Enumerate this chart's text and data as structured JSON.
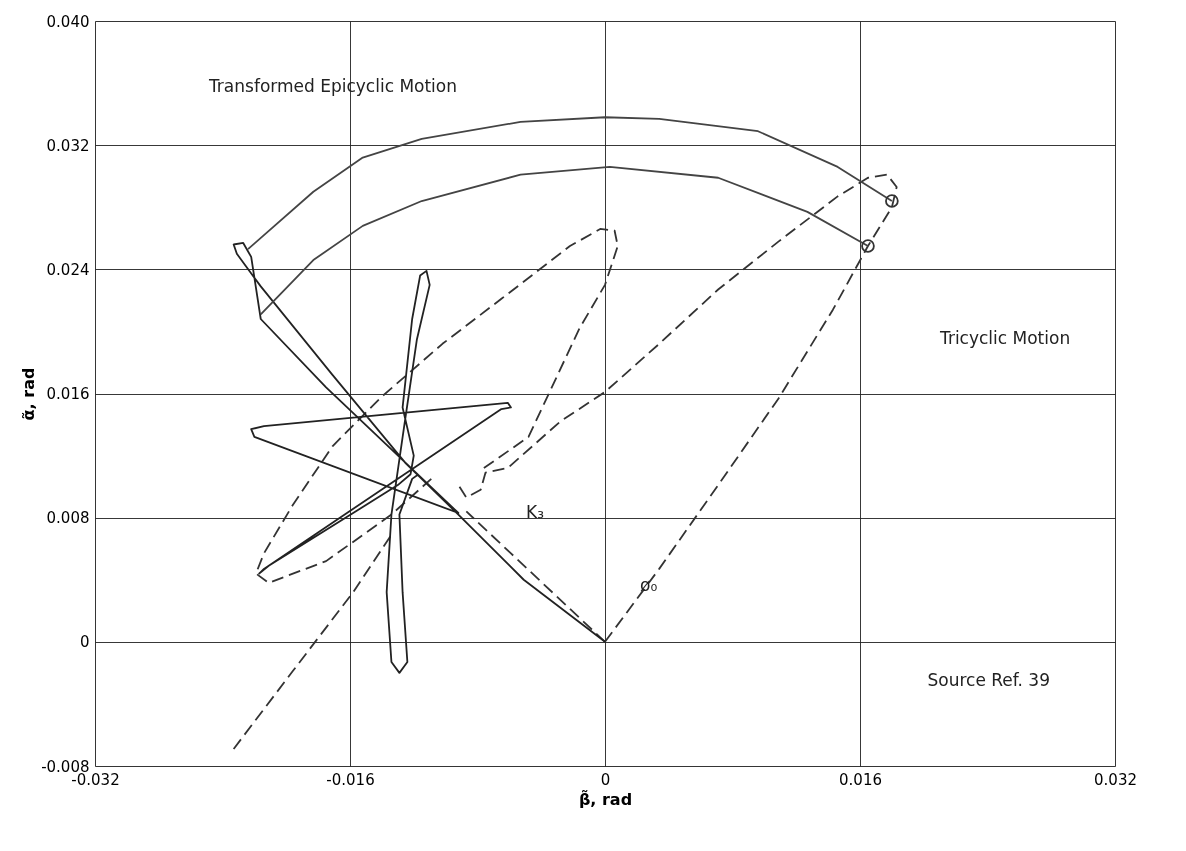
{
  "chart_data": {
    "type": "line",
    "xlabel": "β̃, rad",
    "ylabel": "α̃, rad",
    "xlim": [
      -0.032,
      0.032
    ],
    "ylim": [
      -0.008,
      0.04
    ],
    "xticks": [
      -0.032,
      -0.016,
      0,
      0.016,
      0.032
    ],
    "yticks": [
      -0.008,
      0,
      0.008,
      0.016,
      0.024,
      0.032,
      {
        "value": 0.04,
        "label": "0.040"
      }
    ],
    "grid": true,
    "series": [
      {
        "color": "#333333",
        "line_style": "dashed",
        "x": [
          0,
          0.0034,
          0.0071,
          0.0109,
          0.0143,
          0.0165,
          0.018,
          0.0183,
          0.0177,
          0.0165,
          0.0146,
          0.0109,
          0.0071,
          0.0034,
          0,
          -0.0028,
          -0.0061,
          -0.0075,
          -0.0078,
          -0.0087,
          -0.0092
        ],
        "values": [
          0,
          0.0047,
          0.0101,
          0.0157,
          0.0214,
          0.0255,
          0.028,
          0.0293,
          0.0301,
          0.0299,
          0.0287,
          0.0258,
          0.0227,
          0.0192,
          0.0161,
          0.0142,
          0.0112,
          0.0109,
          0.0098,
          0.0093,
          0.0101
        ]
      },
      {
        "color": "#333333",
        "line_style": "dashed",
        "x": [
          -0.0076,
          -0.0048,
          -0.0016,
          0,
          0.0008,
          0.0006,
          -0.0003,
          -0.0022,
          -0.0065,
          -0.0102,
          -0.014,
          -0.0171,
          -0.0196,
          -0.0214,
          -0.0219,
          -0.0211,
          -0.0175,
          -0.0134,
          -0.0109
        ],
        "values": [
          0.0112,
          0.0132,
          0.0202,
          0.023,
          0.0255,
          0.0265,
          0.0266,
          0.0255,
          0.0221,
          0.0192,
          0.0158,
          0.0126,
          0.0088,
          0.0057,
          0.0044,
          0.0038,
          0.0052,
          0.0082,
          0.0105
        ]
      },
      {
        "color": "#333333",
        "line_style": "dashed",
        "x": [
          -0.0233,
          -0.0196,
          -0.0158,
          -0.0134
        ],
        "values": [
          -0.0069,
          -0.0019,
          0.0032,
          0.0069
        ]
      },
      {
        "color": "#333333",
        "line_style": "dashed",
        "x": [
          0,
          -0.0087
        ],
        "values": [
          0,
          0.0084
        ]
      },
      {
        "color": "#222222",
        "line_style": "solid",
        "x": [
          0,
          -0.0051,
          -0.0092,
          -0.0125,
          -0.0171,
          -0.0216,
          -0.0231,
          -0.0233,
          -0.0227,
          -0.0222,
          -0.0216,
          -0.0175,
          -0.0134,
          -0.0092,
          -0.022,
          -0.0222,
          -0.0214,
          -0.0061,
          -0.0059,
          -0.0065,
          -0.0214,
          -0.0217,
          -0.0211,
          -0.013,
          -0.0122,
          -0.012,
          -0.0127,
          -0.0121,
          -0.0116,
          -0.0112,
          -0.011,
          -0.0118,
          -0.0126,
          -0.0134,
          -0.0137,
          -0.0134,
          -0.0129,
          -0.0124,
          -0.0127,
          -0.0129,
          -0.0121,
          -0.0117
        ],
        "values": [
          0,
          0.004,
          0.0082,
          0.0115,
          0.0172,
          0.0229,
          0.025,
          0.0256,
          0.0257,
          0.0248,
          0.0208,
          0.0164,
          0.0124,
          0.0083,
          0.0132,
          0.0137,
          0.0139,
          0.0154,
          0.0151,
          0.015,
          0.0047,
          0.0044,
          0.0049,
          0.0101,
          0.0108,
          0.012,
          0.0151,
          0.0208,
          0.0236,
          0.0239,
          0.023,
          0.0195,
          0.0139,
          0.0082,
          0.0032,
          -0.0013,
          -0.002,
          -0.0013,
          0.0032,
          0.0082,
          0.0105,
          0.0108
        ]
      },
      {
        "color": "#444444",
        "line_style": "solid",
        "x": [
          0.018,
          0.0146,
          0.0096,
          0.0034,
          0,
          -0.0053,
          -0.0115,
          -0.0152,
          -0.0183,
          -0.0224
        ],
        "values": [
          0.0284,
          0.0306,
          0.0329,
          0.0337,
          0.0338,
          0.0335,
          0.0324,
          0.0312,
          0.029,
          0.0253
        ]
      },
      {
        "color": "#444444",
        "line_style": "solid",
        "x": [
          0.0165,
          0.0127,
          0.0071,
          0.0003,
          -0.0053,
          -0.0115,
          -0.0152,
          -0.0183,
          -0.0216
        ],
        "values": [
          0.0255,
          0.0277,
          0.0299,
          0.0306,
          0.0301,
          0.0284,
          0.0268,
          0.0246,
          0.0211
        ]
      },
      {
        "type": "scatter",
        "marker": "circle",
        "color": "#333333",
        "x": [
          0.018,
          0.0165
        ],
        "values": [
          0.0284,
          0.0255
        ]
      }
    ],
    "annotations": [
      "Transformed Epicyclic Motion",
      "Tricyclic Motion",
      "K₃",
      "ø₀",
      "Source Ref. 39"
    ]
  }
}
